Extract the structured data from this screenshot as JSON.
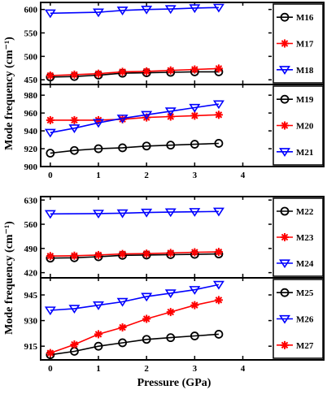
{
  "chart_data": [
    {
      "type": "line",
      "ylabel": "Mode frequency (cm⁻¹)",
      "xlabel": "",
      "xlim": [
        -0.2,
        4.6
      ],
      "x_ticks": [
        0,
        1,
        2,
        3,
        4
      ],
      "grid": false,
      "panels": [
        {
          "ylim": [
            440,
            615
          ],
          "y_ticks": [
            450,
            500,
            550,
            600
          ],
          "legend_position": "right",
          "series": [
            {
              "name": "M16",
              "color": "#000000",
              "marker": "circle",
              "x": [
                0,
                0.5,
                1,
                1.5,
                2,
                2.5,
                3,
                3.5
              ],
              "y": [
                456,
                457,
                460,
                464,
                465,
                466,
                467,
                467
              ]
            },
            {
              "name": "M17",
              "color": "#ff0000",
              "marker": "star",
              "x": [
                0,
                0.5,
                1,
                1.5,
                2,
                2.5,
                3,
                3.5
              ],
              "y": [
                459,
                461,
                463,
                467,
                468,
                470,
                472,
                474
              ]
            },
            {
              "name": "M18",
              "color": "#0000ff",
              "marker": "triangle-down",
              "x": [
                0,
                1,
                1.5,
                2,
                2.5,
                3,
                3.5
              ],
              "y": [
                592,
                594,
                598,
                600,
                601,
                603,
                604
              ]
            }
          ]
        },
        {
          "ylim": [
            900,
            992
          ],
          "y_ticks": [
            900,
            920,
            940,
            960,
            980
          ],
          "legend_position": "right",
          "series": [
            {
              "name": "M19",
              "color": "#000000",
              "marker": "circle",
              "x": [
                0,
                0.5,
                1,
                1.5,
                2,
                2.5,
                3,
                3.5
              ],
              "y": [
                915,
                918,
                920,
                921,
                923,
                924,
                925,
                926
              ]
            },
            {
              "name": "M20",
              "color": "#ff0000",
              "marker": "star",
              "x": [
                0,
                0.5,
                1,
                1.5,
                2,
                2.5,
                3,
                3.5
              ],
              "y": [
                952,
                952,
                952,
                953,
                955,
                956,
                957,
                958
              ]
            },
            {
              "name": "M21",
              "color": "#0000ff",
              "marker": "triangle-down",
              "x": [
                0,
                0.5,
                1,
                1.5,
                2,
                2.5,
                3,
                3.5
              ],
              "y": [
                938,
                943,
                949,
                954,
                958,
                962,
                966,
                970
              ]
            }
          ]
        }
      ]
    },
    {
      "type": "line",
      "ylabel": "Mode frequency (cm⁻¹)",
      "xlabel": "Pressure (GPa)",
      "xlim": [
        -0.2,
        4.6
      ],
      "x_ticks": [
        0,
        1,
        2,
        3,
        4
      ],
      "grid": false,
      "panels": [
        {
          "ylim": [
            405,
            640
          ],
          "y_ticks": [
            420,
            490,
            560,
            630
          ],
          "legend_position": "right",
          "series": [
            {
              "name": "M22",
              "color": "#000000",
              "marker": "circle",
              "x": [
                0,
                0.5,
                1,
                1.5,
                2,
                2.5,
                3,
                3.5
              ],
              "y": [
                462,
                463,
                466,
                470,
                471,
                472,
                473,
                474
              ]
            },
            {
              "name": "M23",
              "color": "#ff0000",
              "marker": "star",
              "x": [
                0,
                0.5,
                1,
                1.5,
                2,
                2.5,
                3,
                3.5
              ],
              "y": [
                468,
                469,
                471,
                474,
                475,
                477,
                479,
                480
              ]
            },
            {
              "name": "M24",
              "color": "#0000ff",
              "marker": "triangle-down",
              "x": [
                0,
                1,
                1.5,
                2,
                2.5,
                3,
                3.5
              ],
              "y": [
                590,
                591,
                592,
                594,
                595,
                596,
                597
              ]
            }
          ]
        },
        {
          "ylim": [
            907,
            955
          ],
          "y_ticks": [
            915,
            930,
            945
          ],
          "legend_position": "right",
          "series": [
            {
              "name": "M25",
              "color": "#000000",
              "marker": "circle",
              "x": [
                0,
                0.5,
                1,
                1.5,
                2,
                2.5,
                3,
                3.5
              ],
              "y": [
                910,
                912,
                915,
                917,
                919,
                920,
                921,
                922
              ]
            },
            {
              "name": "M26",
              "color": "#0000ff",
              "marker": "triangle-down",
              "x": [
                0,
                0.5,
                1,
                1.5,
                2,
                2.5,
                3,
                3.5
              ],
              "y": [
                936,
                937,
                939,
                941,
                944,
                946,
                948,
                951
              ]
            },
            {
              "name": "M27",
              "color": "#ff0000",
              "marker": "star",
              "x": [
                0,
                0.5,
                1,
                1.5,
                2,
                2.5,
                3,
                3.5
              ],
              "y": [
                911,
                916,
                922,
                926,
                931,
                935,
                939,
                942
              ]
            }
          ]
        }
      ]
    }
  ]
}
